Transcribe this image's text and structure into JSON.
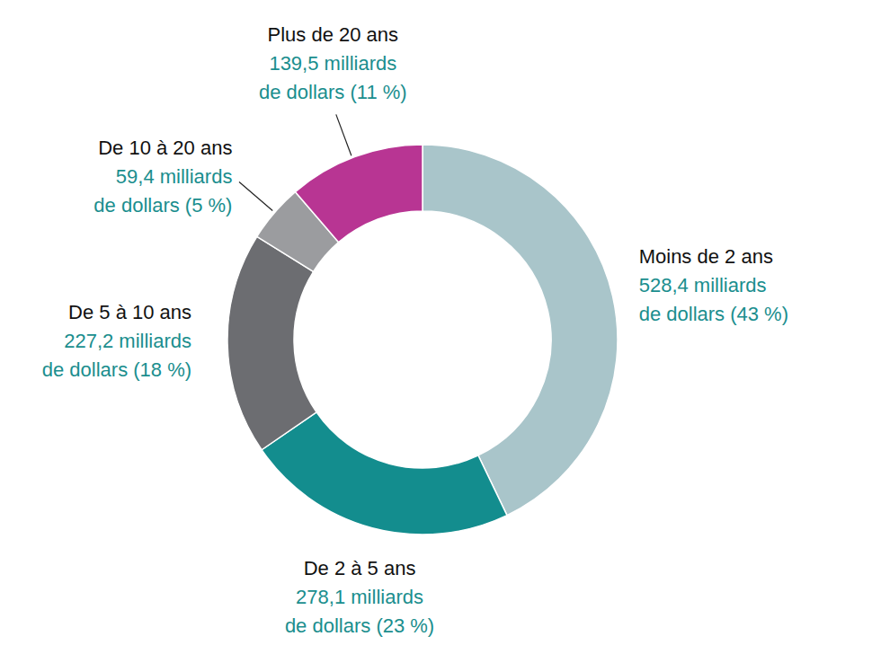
{
  "chart_data": {
    "type": "donut",
    "categories": [
      "Moins de 2 ans",
      "De 2 à 5 ans",
      "De 5 à 10 ans",
      "De 10 à 20 ans",
      "Plus de 20 ans"
    ],
    "values": [
      528.4,
      278.1,
      227.2,
      59.4,
      139.5
    ],
    "value_labels": [
      "528,4 milliards de dollars (43 %)",
      "278,1 milliards de dollars (23 %)",
      "227,2 milliards de dollars (18 %)",
      "59,4 milliards de dollars (5 %)",
      "139,5 milliards de dollars (11 %)"
    ],
    "colors": [
      "#a9c5ca",
      "#138d8e",
      "#6c6d71",
      "#9b9c9f",
      "#b83593"
    ],
    "data_labels": true
  }
}
